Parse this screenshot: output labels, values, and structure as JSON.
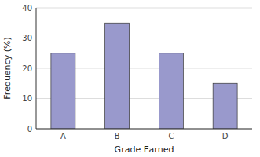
{
  "chart_data": {
    "type": "bar",
    "categories": [
      "A",
      "B",
      "C",
      "D"
    ],
    "values": [
      25,
      35,
      25,
      15
    ],
    "color": "#9999cc",
    "xlabel": "Grade Earned",
    "ylabel": "Frequency (%)",
    "ylim": [
      0,
      40
    ],
    "yticks": [
      0,
      10,
      20,
      30,
      40
    ],
    "grid": true
  }
}
